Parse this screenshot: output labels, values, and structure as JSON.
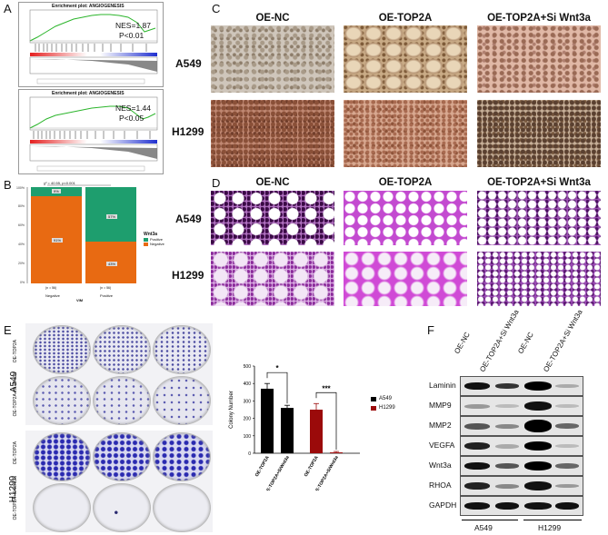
{
  "panels": {
    "A": {
      "label": "A",
      "plots": [
        {
          "title": "Enrichment plot: ANGIOGENESIS",
          "nes": "NES=1.87",
          "p": "P<0.01",
          "ylabel1": "Enrichment score (ES)",
          "ylabel2": "Ranked list metric"
        },
        {
          "title": "Enrichment plot: ANGIOGENESIS",
          "nes": "NES=1.44",
          "p": "P<0.05",
          "ylabel1": "Enrichment score (ES)",
          "ylabel2": "Ranked list metric"
        }
      ]
    },
    "B": {
      "label": "B",
      "legend_title": "Wnt3a",
      "legend_items": [
        "Positive",
        "Negative"
      ],
      "xlabel": "VIM",
      "categories": [
        "Negative",
        "Positive"
      ],
      "n_labels": [
        "(n = 56)",
        "(n = 56)"
      ],
      "pct_labels": [
        "9%",
        "91%",
        "57%",
        "43%"
      ],
      "stat": "χ² = 40.55, p<0.001"
    },
    "C": {
      "label": "C",
      "columns": [
        "OE-NC",
        "OE-TOP2A",
        "OE-TOP2A+Si Wnt3a"
      ],
      "rows": [
        "A549",
        "H1299"
      ]
    },
    "D": {
      "label": "D",
      "columns": [
        "OE-NC",
        "OE-TOP2A",
        "OE-TOP2A+Si Wnt3a"
      ],
      "rows": [
        "A549",
        "H1299"
      ]
    },
    "E": {
      "label": "E",
      "row_labels": [
        "A549",
        "H1299"
      ],
      "side_labels": [
        "OE-TOP2A",
        "OE-TOP2A+Si Wnt3a",
        "OE-TOP2A",
        "OE-TOP2A+Si Wnt3a"
      ]
    },
    "F": {
      "label": "F",
      "lanes": [
        "OE-NC",
        "OE-TOP2A+Si Wnt3a",
        "OE-NC",
        "OE-TOP2A+Si Wnt3a"
      ],
      "proteins": [
        "Laminin",
        "MMP9",
        "MMP2",
        "VEGFA",
        "Wnt3a",
        "RHOA",
        "GAPDH"
      ],
      "groups": [
        "A549",
        "H1299"
      ]
    }
  },
  "chart_data": {
    "type": "bar",
    "ylabel": "Colony Number",
    "categories": [
      "OE-TOP2A",
      "OE-TOP2A+SiWnt3a",
      "OE-TOP2A",
      "OE-TOP2A+SiWnt3a"
    ],
    "series": [
      {
        "name": "A549",
        "color": "#000000",
        "values": [
          370,
          260,
          null,
          null
        ]
      },
      {
        "name": "H1299",
        "color": "#9b0a0a",
        "values": [
          null,
          null,
          250,
          5
        ]
      }
    ],
    "errors": [
      30,
      15,
      35,
      5
    ],
    "ylim": [
      0,
      500
    ],
    "yticks": [
      0,
      100,
      200,
      300,
      400,
      500
    ],
    "significance": [
      "*",
      "***"
    ],
    "legend_placement": "right"
  }
}
